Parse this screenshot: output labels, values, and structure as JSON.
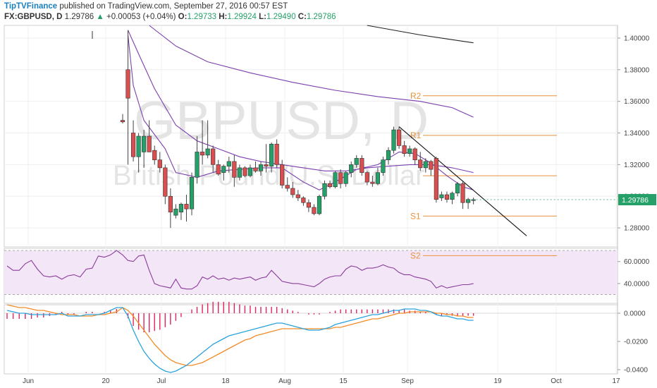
{
  "header": {
    "author": "TipTVFinance",
    "published_text": " published on TradingView.com, September 27, 2016 00:57 EST",
    "symbol": "FX:GBPUSD, D",
    "last": "1.29786",
    "change": "+0.00053 (+0.04%)",
    "o_label": "O:",
    "o": "1.29733",
    "h_label": "H:",
    "h": "1.29924",
    "l_label": "L:",
    "l": "1.29490",
    "c_label": "C:",
    "c": "1.29786"
  },
  "watermark": {
    "symbol": "GBPUSD, D",
    "name": "British Pound/U.S. Dollar"
  },
  "colors": {
    "up": "#26a069",
    "down": "#d94e4e",
    "accent": "#1a7fc0",
    "pivot": "#e8923b",
    "rsi": "#8a3c9a",
    "rsi_band": "#f3e6f7",
    "macd": "#2aa2dc",
    "signal": "#f28c28",
    "hist": "#e0245e"
  },
  "chart_data": [
    {
      "type": "candlestick",
      "title": "GBPUSD, D",
      "price_labels": [
        "1.40000",
        "1.38000",
        "1.36000",
        "1.34000",
        "1.32000",
        "1.30000",
        "1.28000"
      ],
      "current_price_label": "1.29786",
      "ylim": [
        1.268,
        1.408
      ],
      "x_labels": [
        "Jun",
        "20",
        "Jul",
        "18",
        "Aug",
        "15",
        "Sep",
        "19",
        "Oct",
        "17"
      ],
      "candles": [
        {
          "o": 1.348,
          "h": 1.352,
          "l": 1.346,
          "c": 1.347
        },
        {
          "o": 1.38,
          "h": 1.405,
          "l": 1.32,
          "c": 1.362
        },
        {
          "o": 1.34,
          "h": 1.348,
          "l": 1.322,
          "c": 1.325
        },
        {
          "o": 1.325,
          "h": 1.34,
          "l": 1.315,
          "c": 1.338
        },
        {
          "o": 1.328,
          "h": 1.342,
          "l": 1.318,
          "c": 1.338
        },
        {
          "o": 1.338,
          "h": 1.348,
          "l": 1.328,
          "c": 1.328
        },
        {
          "o": 1.329,
          "h": 1.332,
          "l": 1.32,
          "c": 1.323
        },
        {
          "o": 1.323,
          "h": 1.328,
          "l": 1.315,
          "c": 1.318
        },
        {
          "o": 1.318,
          "h": 1.32,
          "l": 1.295,
          "c": 1.3
        },
        {
          "o": 1.3,
          "h": 1.305,
          "l": 1.28,
          "c": 1.29
        },
        {
          "o": 1.288,
          "h": 1.295,
          "l": 1.286,
          "c": 1.292
        },
        {
          "o": 1.29,
          "h": 1.296,
          "l": 1.285,
          "c": 1.295
        },
        {
          "o": 1.295,
          "h": 1.301,
          "l": 1.284,
          "c": 1.292
        },
        {
          "o": 1.292,
          "h": 1.315,
          "l": 1.288,
          "c": 1.312
        },
        {
          "o": 1.312,
          "h": 1.338,
          "l": 1.308,
          "c": 1.328
        },
        {
          "o": 1.328,
          "h": 1.348,
          "l": 1.32,
          "c": 1.326
        },
        {
          "o": 1.326,
          "h": 1.348,
          "l": 1.324,
          "c": 1.33
        },
        {
          "o": 1.33,
          "h": 1.332,
          "l": 1.315,
          "c": 1.32
        },
        {
          "o": 1.32,
          "h": 1.323,
          "l": 1.313,
          "c": 1.314
        },
        {
          "o": 1.315,
          "h": 1.32,
          "l": 1.31,
          "c": 1.319
        },
        {
          "o": 1.319,
          "h": 1.325,
          "l": 1.315,
          "c": 1.322
        },
        {
          "o": 1.322,
          "h": 1.326,
          "l": 1.306,
          "c": 1.312
        },
        {
          "o": 1.312,
          "h": 1.32,
          "l": 1.31,
          "c": 1.318
        },
        {
          "o": 1.318,
          "h": 1.319,
          "l": 1.312,
          "c": 1.313
        },
        {
          "o": 1.313,
          "h": 1.32,
          "l": 1.312,
          "c": 1.318
        },
        {
          "o": 1.318,
          "h": 1.322,
          "l": 1.315,
          "c": 1.316
        },
        {
          "o": 1.316,
          "h": 1.322,
          "l": 1.313,
          "c": 1.32
        },
        {
          "o": 1.32,
          "h": 1.333,
          "l": 1.315,
          "c": 1.319
        },
        {
          "o": 1.319,
          "h": 1.334,
          "l": 1.315,
          "c": 1.333
        },
        {
          "o": 1.333,
          "h": 1.336,
          "l": 1.318,
          "c": 1.32
        },
        {
          "o": 1.32,
          "h": 1.323,
          "l": 1.305,
          "c": 1.307
        },
        {
          "o": 1.307,
          "h": 1.312,
          "l": 1.303,
          "c": 1.305
        },
        {
          "o": 1.305,
          "h": 1.309,
          "l": 1.299,
          "c": 1.301
        },
        {
          "o": 1.301,
          "h": 1.304,
          "l": 1.297,
          "c": 1.299
        },
        {
          "o": 1.299,
          "h": 1.3,
          "l": 1.294,
          "c": 1.296
        },
        {
          "o": 1.296,
          "h": 1.298,
          "l": 1.29,
          "c": 1.293
        },
        {
          "o": 1.293,
          "h": 1.295,
          "l": 1.288,
          "c": 1.289
        },
        {
          "o": 1.289,
          "h": 1.301,
          "l": 1.288,
          "c": 1.3
        },
        {
          "o": 1.3,
          "h": 1.31,
          "l": 1.298,
          "c": 1.308
        },
        {
          "o": 1.308,
          "h": 1.31,
          "l": 1.305,
          "c": 1.306
        },
        {
          "o": 1.306,
          "h": 1.316,
          "l": 1.305,
          "c": 1.315
        },
        {
          "o": 1.315,
          "h": 1.317,
          "l": 1.305,
          "c": 1.308
        },
        {
          "o": 1.308,
          "h": 1.316,
          "l": 1.306,
          "c": 1.315
        },
        {
          "o": 1.315,
          "h": 1.322,
          "l": 1.312,
          "c": 1.32
        },
        {
          "o": 1.32,
          "h": 1.326,
          "l": 1.318,
          "c": 1.324
        },
        {
          "o": 1.324,
          "h": 1.326,
          "l": 1.313,
          "c": 1.315
        },
        {
          "o": 1.315,
          "h": 1.316,
          "l": 1.307,
          "c": 1.309
        },
        {
          "o": 1.309,
          "h": 1.313,
          "l": 1.306,
          "c": 1.308
        },
        {
          "o": 1.308,
          "h": 1.318,
          "l": 1.307,
          "c": 1.315
        },
        {
          "o": 1.315,
          "h": 1.325,
          "l": 1.313,
          "c": 1.323
        },
        {
          "o": 1.323,
          "h": 1.331,
          "l": 1.32,
          "c": 1.329
        },
        {
          "o": 1.329,
          "h": 1.344,
          "l": 1.327,
          "c": 1.342
        },
        {
          "o": 1.342,
          "h": 1.344,
          "l": 1.33,
          "c": 1.332
        },
        {
          "o": 1.332,
          "h": 1.335,
          "l": 1.325,
          "c": 1.327
        },
        {
          "o": 1.327,
          "h": 1.332,
          "l": 1.325,
          "c": 1.33
        },
        {
          "o": 1.33,
          "h": 1.331,
          "l": 1.32,
          "c": 1.323
        },
        {
          "o": 1.323,
          "h": 1.328,
          "l": 1.316,
          "c": 1.318
        },
        {
          "o": 1.318,
          "h": 1.324,
          "l": 1.315,
          "c": 1.322
        },
        {
          "o": 1.322,
          "h": 1.323,
          "l": 1.313,
          "c": 1.317
        },
        {
          "o": 1.324,
          "h": 1.325,
          "l": 1.296,
          "c": 1.298
        },
        {
          "o": 1.299,
          "h": 1.303,
          "l": 1.297,
          "c": 1.301
        },
        {
          "o": 1.301,
          "h": 1.303,
          "l": 1.296,
          "c": 1.298
        },
        {
          "o": 1.298,
          "h": 1.303,
          "l": 1.295,
          "c": 1.302
        },
        {
          "o": 1.302,
          "h": 1.309,
          "l": 1.3,
          "c": 1.308
        },
        {
          "o": 1.308,
          "h": 1.31,
          "l": 1.292,
          "c": 1.296
        },
        {
          "o": 1.296,
          "h": 1.299,
          "l": 1.292,
          "c": 1.298
        },
        {
          "o": 1.2973,
          "h": 1.2992,
          "l": 1.2949,
          "c": 1.2979
        }
      ],
      "moving_averages": [
        {
          "points": [
            [
              1,
              1.402
            ],
            [
              2,
              1.37
            ],
            [
              4,
              1.348
            ],
            [
              8,
              1.33
            ],
            [
              10,
              1.315
            ],
            [
              14,
              1.312
            ],
            [
              18,
              1.316
            ],
            [
              22,
              1.317
            ],
            [
              26,
              1.318
            ],
            [
              30,
              1.318
            ],
            [
              34,
              1.309
            ],
            [
              37,
              1.304
            ],
            [
              40,
              1.309
            ],
            [
              44,
              1.317
            ],
            [
              48,
              1.32
            ],
            [
              52,
              1.328
            ],
            [
              55,
              1.327
            ],
            [
              58,
              1.321
            ],
            [
              61,
              1.313
            ],
            [
              64,
              1.306
            ],
            [
              66,
              1.304
            ]
          ]
        },
        {
          "points": [
            [
              1,
              1.405
            ],
            [
              3,
              1.39
            ],
            [
              6,
              1.368
            ],
            [
              10,
              1.345
            ],
            [
              14,
              1.335
            ],
            [
              18,
              1.33
            ],
            [
              22,
              1.325
            ],
            [
              26,
              1.322
            ],
            [
              30,
              1.32
            ],
            [
              34,
              1.318
            ],
            [
              38,
              1.316
            ],
            [
              42,
              1.316
            ],
            [
              46,
              1.318
            ],
            [
              50,
              1.319
            ],
            [
              54,
              1.32
            ],
            [
              58,
              1.32
            ],
            [
              62,
              1.318
            ],
            [
              66,
              1.315
            ]
          ]
        },
        {
          "points": [
            [
              5,
              1.408
            ],
            [
              10,
              1.395
            ],
            [
              16,
              1.385
            ],
            [
              24,
              1.378
            ],
            [
              32,
              1.372
            ],
            [
              40,
              1.367
            ],
            [
              48,
              1.363
            ],
            [
              56,
              1.36
            ],
            [
              62,
              1.356
            ],
            [
              66,
              1.35
            ]
          ]
        },
        {
          "points": [
            [
              46,
              1.408
            ],
            [
              56,
              1.402
            ],
            [
              66,
              1.397
            ]
          ]
        }
      ],
      "trendline": {
        "x1": 52,
        "y1": 1.344,
        "x2": 76,
        "y2": 1.275
      },
      "pivots": [
        {
          "label": "R2",
          "value": 1.3635
        },
        {
          "label": "R1",
          "value": 1.3385
        },
        {
          "label": "P",
          "value": 1.313
        },
        {
          "label": "S1",
          "value": 1.2875
        },
        {
          "label": "S2",
          "value": 1.2625
        }
      ]
    },
    {
      "type": "line",
      "title": "RSI",
      "tick_labels": [
        "60.0000",
        "40.0000"
      ],
      "band": [
        30,
        70
      ],
      "ylim": [
        22,
        72
      ],
      "x": [
        0,
        1,
        2,
        3,
        4,
        5,
        6,
        7,
        8,
        9,
        10,
        11,
        12,
        13,
        14,
        15,
        16,
        17,
        18,
        19,
        20,
        21,
        22,
        23,
        24,
        25,
        26,
        27,
        28,
        29,
        30,
        31,
        32,
        33,
        34,
        35,
        36,
        37,
        38,
        39,
        40,
        41,
        42,
        43,
        44,
        45,
        46,
        47,
        48,
        49,
        50,
        51,
        52,
        53,
        54,
        55,
        56,
        57,
        58,
        59,
        60,
        61,
        62,
        63,
        64,
        65,
        66
      ],
      "values": [
        66,
        61,
        60,
        65,
        66,
        52,
        40,
        38,
        37,
        36,
        44,
        36,
        35,
        35,
        38,
        46,
        44,
        47,
        44,
        45,
        43,
        45,
        44,
        45,
        46,
        43,
        45,
        46,
        52,
        47,
        42,
        41,
        40,
        40,
        39,
        38,
        37,
        40,
        44,
        46,
        47,
        47,
        53,
        56,
        55,
        52,
        54,
        54,
        55,
        57,
        55,
        54,
        50,
        48,
        48,
        46,
        45,
        44,
        42,
        36,
        38,
        36,
        37,
        38,
        39,
        39,
        40
      ],
      "pre_values": [
        56,
        52,
        52,
        58,
        61,
        53,
        47,
        46,
        47,
        44,
        47,
        48,
        46,
        53,
        54,
        65,
        64,
        66,
        70
      ]
    },
    {
      "type": "line",
      "title": "MACD",
      "tick_labels": [
        "0.0000",
        "-0.0200",
        "-0.0400"
      ],
      "ylim": [
        -0.043,
        0.006
      ],
      "x": [
        0,
        1,
        2,
        3,
        4,
        5,
        6,
        7,
        8,
        9,
        10,
        11,
        12,
        13,
        14,
        15,
        16,
        17,
        18,
        19,
        20,
        21,
        22,
        23,
        24,
        25,
        26,
        27,
        28,
        29,
        30,
        31,
        32,
        33,
        34,
        35,
        36,
        37,
        38,
        39,
        40,
        41,
        42,
        43,
        44,
        45,
        46,
        47,
        48,
        49,
        50,
        51,
        52,
        53,
        54,
        55,
        56,
        57,
        58,
        59,
        60,
        61,
        62,
        63,
        64,
        65,
        66
      ],
      "macd": [
        0.004,
        -0.002,
        -0.012,
        -0.02,
        -0.027,
        -0.032,
        -0.036,
        -0.039,
        -0.041,
        -0.042,
        -0.041,
        -0.039,
        -0.037,
        -0.034,
        -0.031,
        -0.028,
        -0.025,
        -0.022,
        -0.02,
        -0.018,
        -0.016,
        -0.015,
        -0.014,
        -0.013,
        -0.012,
        -0.011,
        -0.01,
        -0.009,
        -0.008,
        -0.007,
        -0.007,
        -0.008,
        -0.009,
        -0.01,
        -0.011,
        -0.012,
        -0.012,
        -0.012,
        -0.011,
        -0.01,
        -0.008,
        -0.007,
        -0.006,
        -0.005,
        -0.004,
        -0.003,
        -0.002,
        -0.001,
        -0.001,
        0.0,
        0.001,
        0.002,
        0.002,
        0.003,
        0.003,
        0.003,
        0.002,
        0.002,
        0.001,
        -0.001,
        -0.002,
        -0.002,
        -0.003,
        -0.004,
        -0.004,
        -0.005,
        -0.005
      ],
      "signal": [
        0.004,
        0.002,
        -0.002,
        -0.007,
        -0.012,
        -0.017,
        -0.022,
        -0.026,
        -0.03,
        -0.033,
        -0.035,
        -0.036,
        -0.037,
        -0.037,
        -0.036,
        -0.035,
        -0.033,
        -0.031,
        -0.029,
        -0.027,
        -0.025,
        -0.023,
        -0.021,
        -0.019,
        -0.018,
        -0.016,
        -0.015,
        -0.014,
        -0.013,
        -0.012,
        -0.011,
        -0.011,
        -0.011,
        -0.011,
        -0.011,
        -0.011,
        -0.011,
        -0.011,
        -0.011,
        -0.011,
        -0.01,
        -0.01,
        -0.009,
        -0.008,
        -0.007,
        -0.006,
        -0.005,
        -0.004,
        -0.004,
        -0.003,
        -0.002,
        -0.001,
        0.0,
        0.0,
        0.001,
        0.001,
        0.001,
        0.001,
        0.001,
        0.0,
        0.0,
        -0.001,
        -0.001,
        -0.002,
        -0.002,
        -0.003,
        -0.003
      ],
      "pre_macd": [
        0.002,
        0.001,
        0.0,
        0.0,
        -0.001,
        -0.001,
        -0.001,
        -0.001,
        -0.001,
        0.0,
        -0.002,
        -0.002,
        -0.002,
        -0.001,
        -0.001,
        -0.001,
        0.0,
        0.002,
        0.004
      ],
      "pre_signal": [
        0.006,
        0.005,
        0.004,
        0.004,
        0.003,
        0.002,
        0.002,
        0.001,
        0.0,
        -0.001,
        -0.001,
        -0.001,
        -0.002,
        -0.002,
        -0.002,
        -0.001,
        -0.001,
        0.0,
        0.001
      ]
    }
  ]
}
